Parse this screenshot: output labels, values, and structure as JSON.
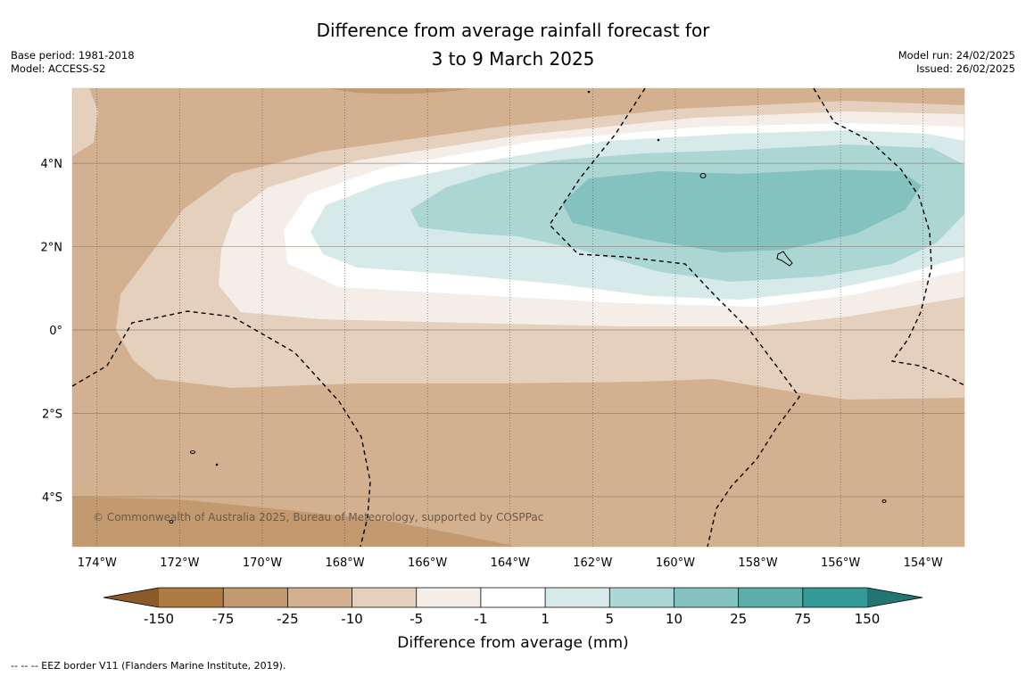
{
  "title": {
    "line1": "Difference from average rainfall forecast for",
    "line2": "3 to 9 March 2025"
  },
  "meta_left": {
    "base_period": "Base period: 1981-2018",
    "model": "Model: ACCESS-S2"
  },
  "meta_right": {
    "model_run": "Model run: 24/02/2025",
    "issued": "Issued: 26/02/2025"
  },
  "map": {
    "lon_range": [
      -174.6,
      -153.0
    ],
    "lat_range": [
      -5.2,
      5.8
    ],
    "lon_ticks": [
      {
        "value": -174,
        "label": "174°W"
      },
      {
        "value": -172,
        "label": "172°W"
      },
      {
        "value": -170,
        "label": "170°W"
      },
      {
        "value": -168,
        "label": "168°W"
      },
      {
        "value": -166,
        "label": "166°W"
      },
      {
        "value": -164,
        "label": "164°W"
      },
      {
        "value": -162,
        "label": "162°W"
      },
      {
        "value": -160,
        "label": "160°W"
      },
      {
        "value": -158,
        "label": "158°W"
      },
      {
        "value": -156,
        "label": "156°W"
      },
      {
        "value": -154,
        "label": "154°W"
      }
    ],
    "lat_ticks": [
      {
        "value": 4,
        "label": "4°N"
      },
      {
        "value": 2,
        "label": "2°N"
      },
      {
        "value": 0,
        "label": "0°"
      },
      {
        "value": -2,
        "label": "2°S"
      },
      {
        "value": -4,
        "label": "4°S"
      }
    ],
    "copyright": "© Commonwealth of Australia 2025, Bureau of Meteorology, supported by COSPPac"
  },
  "colorbar": {
    "boundaries": [
      "-150",
      "-75",
      "-25",
      "-10",
      "-5",
      "-1",
      "1",
      "5",
      "10",
      "25",
      "75",
      "150"
    ],
    "colors": [
      "#b07a43",
      "#c39a70",
      "#d3b08f",
      "#e4d0bd",
      "#f5ede7",
      "#ffffff",
      "#d6ebe9",
      "#acd6d4",
      "#84c2c0",
      "#5fadaa",
      "#349a97"
    ],
    "extend_low_color": "#8a5a2b",
    "extend_high_color": "#237573",
    "label": "Difference from average (mm)"
  },
  "footnote": "--  --  -- EEZ border V11 (Flanders Marine Institute, 2019)."
}
